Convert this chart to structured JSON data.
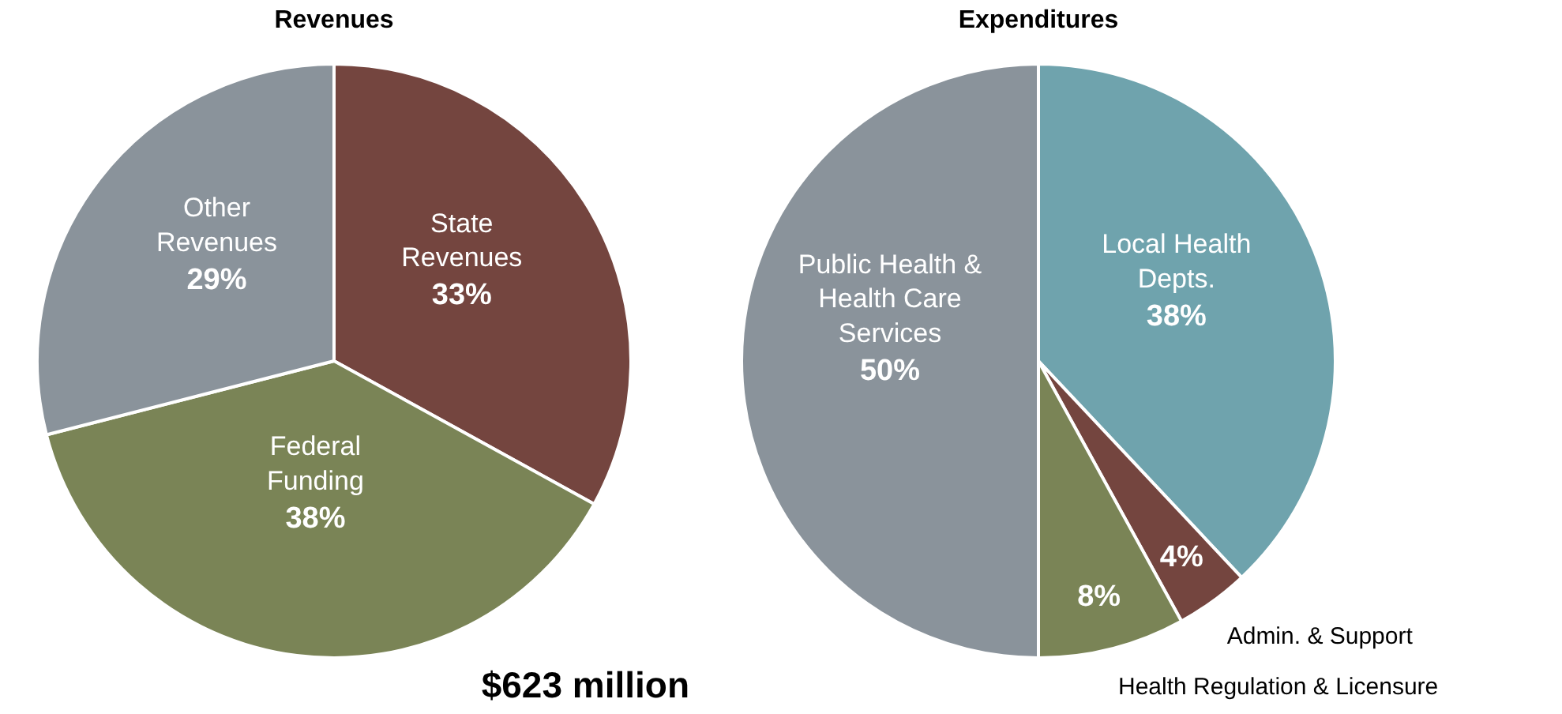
{
  "chart_data": [
    {
      "type": "pie",
      "title": "Revenues",
      "categories": [
        "State Revenues",
        "Federal Funding",
        "Other Revenues"
      ],
      "values": [
        33,
        38,
        29
      ],
      "colors": [
        "#74453f",
        "#7a8456",
        "#8a939b"
      ],
      "value_labels": [
        "33%",
        "38%",
        "29%"
      ],
      "annotations": [
        "$623 million"
      ]
    },
    {
      "type": "pie",
      "title": "Expenditures",
      "categories": [
        "Local Health Depts.",
        "Admin. & Support",
        "Health Regulation & Licensure",
        "Public Health & Health Care Services"
      ],
      "values": [
        38,
        4,
        8,
        50
      ],
      "colors": [
        "#6fa3ad",
        "#74453f",
        "#7a8456",
        "#8a939b"
      ],
      "value_labels": [
        "38%",
        "4%",
        "8%",
        "50%"
      ]
    }
  ]
}
